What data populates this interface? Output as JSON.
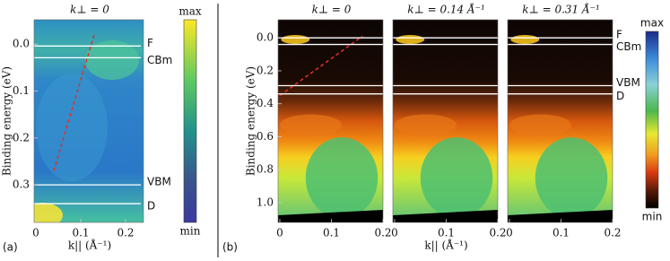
{
  "chart_data": [
    {
      "type": "heatmap",
      "panel_label": "(a)",
      "title": "k⊥ = 0",
      "colormap": "viridis",
      "xlabel": "k|| (Å⁻¹)",
      "ylabel": "Binding energy (eV)",
      "xlim": [
        0,
        0.24
      ],
      "ylim": [
        -0.052,
        0.38
      ],
      "y_inverted": true,
      "xticks": [
        0,
        0.1,
        0.2
      ],
      "yticks": [
        {
          "value": 0,
          "label": "0.0"
        },
        0.1,
        0.2,
        0.3
      ],
      "hlines": [
        {
          "label": "F",
          "value": 0.004
        },
        {
          "label": "CBm",
          "value": 0.029
        },
        {
          "label": "VBM",
          "value": 0.3
        },
        {
          "label": "D",
          "value": 0.34
        }
      ],
      "guide": {
        "color": "#e0302a",
        "x": [
          0.04,
          0.13
        ],
        "y": [
          0.27,
          -0.02
        ]
      },
      "colorbar": {
        "max_label": "max",
        "min_label": "min"
      }
    },
    {
      "type": "heatmap",
      "panel_label": "(b)",
      "title": "k⊥ = 0",
      "colormap": "jet",
      "ylabel": "Binding energy (eV)",
      "xlim": [
        0,
        0.2
      ],
      "ylim": [
        -0.11,
        1.12
      ],
      "y_inverted": true,
      "xticks": [
        0,
        0.1,
        0.2
      ],
      "yticks": [
        {
          "value": 0,
          "label": "0.0"
        },
        0.2,
        0.4,
        0.6,
        0.8,
        {
          "value": 1,
          "label": "1.0"
        }
      ],
      "hlines": [
        0.0,
        0.04,
        0.29,
        0.34
      ],
      "guide": {
        "color": "#e0302a",
        "x": [
          0,
          0.16
        ],
        "y": [
          0.35,
          -0.01
        ]
      }
    },
    {
      "type": "heatmap",
      "title": "k⊥ = 0.14 Å⁻¹",
      "colormap": "jet",
      "xlabel": "k|| (Å⁻¹)",
      "xlim": [
        0,
        0.2
      ],
      "ylim": [
        -0.11,
        1.12
      ],
      "y_inverted": true,
      "xticks": [
        0,
        0.1,
        0.2
      ],
      "hlines": [
        0.0,
        0.04,
        0.29,
        0.34
      ]
    },
    {
      "type": "heatmap",
      "title": "k⊥ = 0.31 Å⁻¹",
      "colormap": "jet",
      "xlim": [
        0,
        0.2
      ],
      "ylim": [
        -0.11,
        1.12
      ],
      "y_inverted": true,
      "xticks": [
        0,
        0.1,
        0.2
      ],
      "hlines": [
        {
          "label": "F",
          "value": 0.0
        },
        {
          "label": "CBm",
          "value": 0.04
        },
        {
          "label": "VBM",
          "value": 0.29
        },
        {
          "label": "D",
          "value": 0.34
        }
      ],
      "colorbar": {
        "max_label": "max",
        "min_label": "min"
      }
    }
  ]
}
